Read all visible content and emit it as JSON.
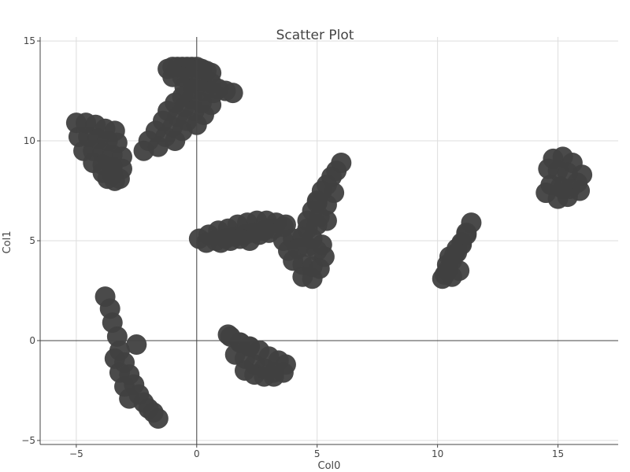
{
  "chart_data": {
    "type": "scatter",
    "title": "Scatter Plot",
    "xlabel": "Col0",
    "ylabel": "Col1",
    "xlim": [
      -6.5,
      17.5
    ],
    "ylim": [
      -5.2,
      15.2
    ],
    "xticks": [
      -5,
      0,
      5,
      10,
      15
    ],
    "yticks": [
      -5,
      0,
      5,
      10,
      15
    ],
    "grid": true,
    "point_color": "#404040",
    "series": [
      {
        "x": [
          -1.2,
          -1.0,
          -0.8,
          -0.6,
          -0.4,
          -0.2,
          0.0,
          0.2,
          0.4,
          0.6,
          -1.0,
          -0.6,
          -0.2,
          0.2,
          0.6,
          -0.5,
          -0.1,
          0.3,
          0.7,
          -0.6,
          -0.2,
          0.2,
          0.6,
          -0.9,
          -0.5,
          -0.1,
          0.3,
          -1.2,
          -0.8,
          -0.4,
          0.0,
          -1.4,
          -1.0,
          -0.6,
          -1.7,
          -1.3,
          -0.9,
          -2.0,
          -1.6,
          -2.2,
          0.9,
          1.2,
          1.5,
          -5.0,
          -4.6,
          -4.2,
          -3.8,
          -3.4,
          -4.9,
          -4.5,
          -4.1,
          -3.7,
          -3.3,
          -4.7,
          -4.3,
          -3.9,
          -3.5,
          -3.1,
          -4.3,
          -3.9,
          -3.5,
          -3.1,
          -3.9,
          -3.5,
          -3.2,
          -3.7,
          -3.4,
          -3.8,
          -3.6,
          -3.5,
          -3.3,
          -3.2,
          -3.0,
          -2.8,
          -2.6,
          -2.4,
          -2.2,
          -2.0,
          -1.8,
          -1.6,
          -3.4,
          -3.2,
          -3.0,
          -2.8,
          -2.5,
          1.4,
          1.8,
          2.2,
          2.6,
          3.0,
          3.4,
          3.7,
          1.6,
          2.0,
          2.4,
          2.8,
          3.2,
          3.6,
          2.0,
          2.4,
          2.8,
          3.2,
          1.8,
          2.2,
          1.3,
          0.1,
          0.5,
          0.9,
          1.3,
          1.7,
          2.1,
          2.5,
          2.9,
          3.3,
          3.7,
          0.4,
          0.8,
          1.2,
          1.6,
          2.0,
          2.4,
          2.8,
          3.2,
          3.6,
          1.0,
          1.4,
          1.8,
          2.2,
          2.6,
          3.0,
          3.6,
          4.0,
          4.4,
          4.8,
          5.2,
          3.8,
          4.2,
          4.6,
          5.0,
          5.3,
          4.0,
          4.4,
          4.8,
          5.1,
          4.4,
          4.8,
          4.6,
          4.8,
          5.0,
          5.2,
          5.4,
          5.6,
          5.8,
          6.0,
          5.1,
          5.4,
          5.7,
          4.6,
          5.0,
          5.4,
          5.0,
          10.2,
          10.4,
          10.6,
          10.8,
          11.0,
          11.2,
          11.4,
          10.4,
          10.7,
          11.0,
          10.3,
          10.6,
          10.9,
          10.5,
          10.8,
          11.2,
          14.8,
          15.2,
          15.6,
          16.0,
          14.6,
          15.0,
          15.4,
          15.8,
          14.7,
          15.1,
          15.5,
          15.9,
          15.0,
          15.4,
          15.2,
          14.5
        ],
        "y": [
          13.6,
          13.7,
          13.7,
          13.7,
          13.7,
          13.7,
          13.7,
          13.6,
          13.5,
          13.4,
          13.2,
          13.2,
          13.1,
          13.0,
          12.9,
          12.7,
          12.6,
          12.5,
          12.4,
          12.2,
          12.1,
          11.9,
          11.8,
          11.9,
          11.7,
          11.5,
          11.3,
          11.5,
          11.2,
          11.0,
          10.8,
          11.0,
          10.7,
          10.5,
          10.5,
          10.2,
          10.0,
          10.0,
          9.7,
          9.5,
          12.6,
          12.5,
          12.4,
          10.9,
          10.9,
          10.8,
          10.6,
          10.5,
          10.2,
          10.2,
          10.1,
          10.0,
          9.9,
          9.5,
          9.5,
          9.4,
          9.3,
          9.2,
          8.9,
          8.8,
          8.7,
          8.6,
          8.4,
          8.3,
          8.1,
          8.1,
          8.0,
          2.2,
          1.6,
          0.9,
          0.2,
          -0.5,
          -1.1,
          -1.7,
          -2.2,
          -2.7,
          -3.1,
          -3.4,
          -3.6,
          -3.9,
          -0.9,
          -1.6,
          -2.3,
          -2.9,
          -0.2,
          0.2,
          -0.1,
          -0.3,
          -0.5,
          -0.8,
          -1.0,
          -1.2,
          -0.7,
          -0.9,
          -1.2,
          -1.4,
          -1.6,
          -1.6,
          -1.5,
          -1.7,
          -1.8,
          -1.8,
          -0.1,
          -0.3,
          0.3,
          5.1,
          5.3,
          5.5,
          5.6,
          5.8,
          5.9,
          6.0,
          6.0,
          5.9,
          5.8,
          4.9,
          5.0,
          5.1,
          5.2,
          5.3,
          5.4,
          5.5,
          5.6,
          5.7,
          4.9,
          5.0,
          5.1,
          5.0,
          5.3,
          5.4,
          5.0,
          5.1,
          5.2,
          5.1,
          4.8,
          4.5,
          4.6,
          4.7,
          4.5,
          4.2,
          4.0,
          3.8,
          3.7,
          3.6,
          3.2,
          3.1,
          6.0,
          6.5,
          7.0,
          7.5,
          7.8,
          8.2,
          8.5,
          8.9,
          6.2,
          6.8,
          7.4,
          5.6,
          5.8,
          6.0,
          6.9,
          3.1,
          3.5,
          4.0,
          4.4,
          4.9,
          5.4,
          5.9,
          3.8,
          4.3,
          4.8,
          3.3,
          3.2,
          3.5,
          4.2,
          4.6,
          5.3,
          9.1,
          9.2,
          8.9,
          8.3,
          8.6,
          8.5,
          8.4,
          7.9,
          7.8,
          7.7,
          7.6,
          7.5,
          7.1,
          7.2,
          7.6,
          7.4
        ]
      }
    ]
  }
}
